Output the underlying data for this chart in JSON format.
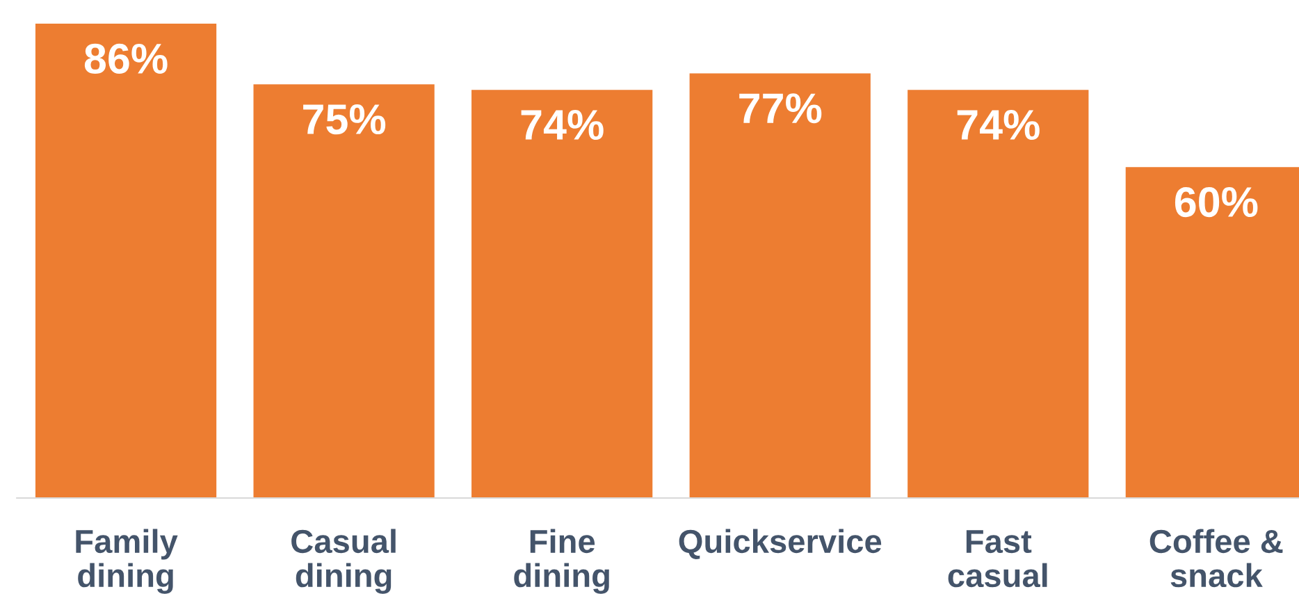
{
  "chart_data": {
    "type": "bar",
    "categories": [
      "Family\ndining",
      "Casual\ndining",
      "Fine\ndining",
      "Quickservice",
      "Fast\ncasual",
      "Coffee &\nsnack"
    ],
    "values": [
      86,
      75,
      74,
      77,
      74,
      60
    ],
    "value_labels": [
      "86%",
      "75%",
      "74%",
      "77%",
      "74%",
      "60%"
    ],
    "color": "#ed7d31",
    "tick_labels": "x",
    "grid": false
  }
}
